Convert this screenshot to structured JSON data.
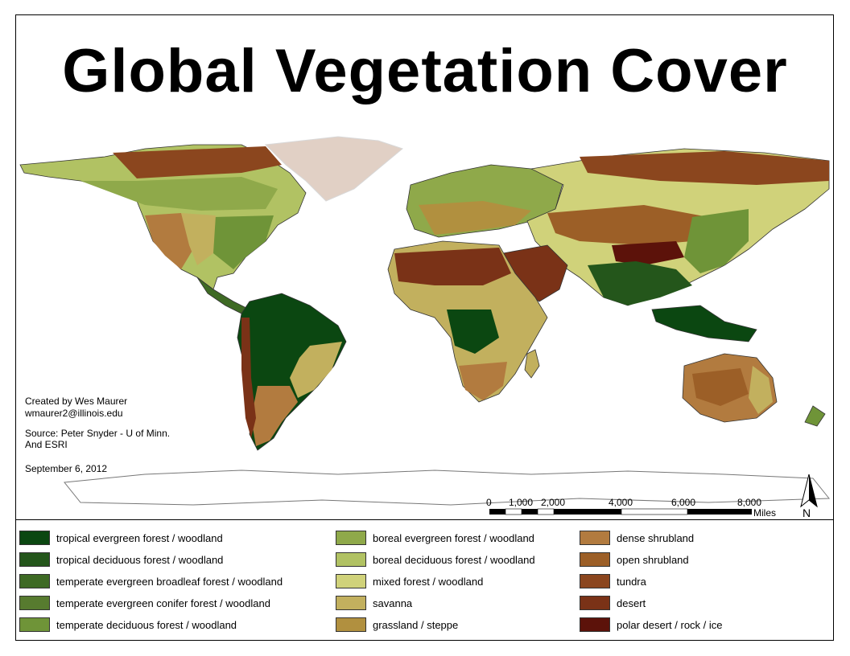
{
  "title": "Global Vegetation Cover",
  "credits": {
    "line1": "Created by Wes  Maurer",
    "line2": "wmaurer2@illinois.edu",
    "line3": "Source: Peter Snyder - U of Minn.",
    "line4": "And ESRI",
    "date": "September 6, 2012"
  },
  "scale_bar": {
    "labels": [
      "0",
      "1,000",
      "2,000",
      "4,000",
      "6,000",
      "8,000"
    ],
    "unit": "Miles"
  },
  "north_arrow": {
    "label": "N"
  },
  "legend": [
    {
      "label": "tropical evergreen forest / woodland",
      "color": "#0b4711"
    },
    {
      "label": "tropical deciduous forest / woodland",
      "color": "#24561b"
    },
    {
      "label": "temperate evergreen broadleaf forest / woodland",
      "color": "#3e6a24"
    },
    {
      "label": "temperate evergreen conifer forest / woodland",
      "color": "#577b2f"
    },
    {
      "label": "temperate deciduous forest / woodland",
      "color": "#6f9438"
    },
    {
      "label": "boreal evergreen forest / woodland",
      "color": "#8fa94a"
    },
    {
      "label": "boreal deciduous forest / woodland",
      "color": "#b1c263"
    },
    {
      "label": "mixed forest / woodland",
      "color": "#d0d27a"
    },
    {
      "label": "savanna",
      "color": "#c2b05e"
    },
    {
      "label": "grassland / steppe",
      "color": "#b1903f"
    },
    {
      "label": "dense shrubland",
      "color": "#b27b3f"
    },
    {
      "label": "open shrubland",
      "color": "#9c5f27"
    },
    {
      "label": "tundra",
      "color": "#8b461e"
    },
    {
      "label": "desert",
      "color": "#7a3217"
    },
    {
      "label": "polar desert / rock / ice",
      "color": "#5c120a"
    }
  ]
}
